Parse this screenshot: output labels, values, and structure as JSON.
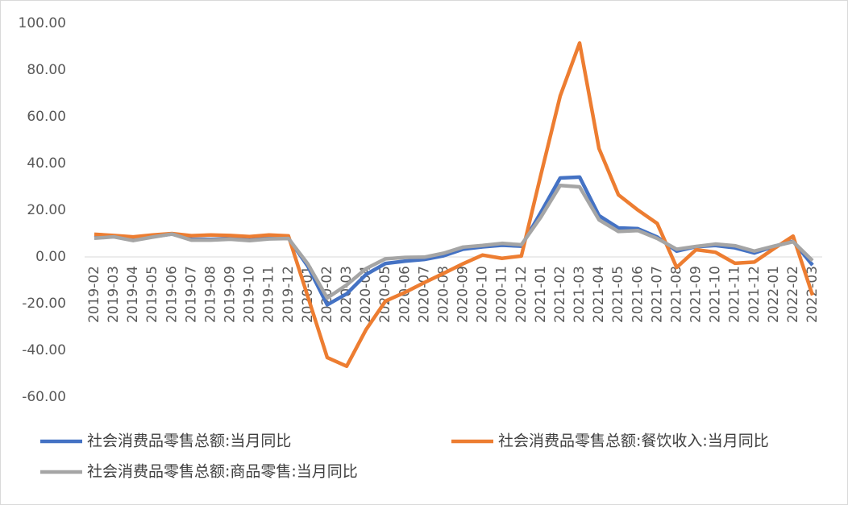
{
  "chart_data": {
    "type": "line",
    "categories": [
      "2019-02",
      "2019-03",
      "2019-04",
      "2019-05",
      "2019-06",
      "2019-07",
      "2019-08",
      "2019-09",
      "2019-10",
      "2019-11",
      "2019-12",
      "2020-01",
      "2020-02",
      "2020-03",
      "2020-04",
      "2020-05",
      "2020-06",
      "2020-07",
      "2020-08",
      "2020-09",
      "2020-10",
      "2020-11",
      "2020-12",
      "2021-01",
      "2021-02",
      "2021-03",
      "2021-04",
      "2021-05",
      "2021-06",
      "2021-07",
      "2021-08",
      "2021-09",
      "2021-10",
      "2021-11",
      "2021-12",
      "2022-01",
      "2022-02",
      "2022-03"
    ],
    "series": [
      {
        "name": "社会消费品零售总额:当月同比",
        "color": "#4472c4",
        "values": [
          8.2,
          8.7,
          7.2,
          8.6,
          9.8,
          7.6,
          7.5,
          7.8,
          7.2,
          8.0,
          8.0,
          -4,
          -20.5,
          -15.8,
          -7.5,
          -2.8,
          -1.8,
          -1.1,
          0.5,
          3.3,
          4.3,
          5.0,
          4.6,
          19,
          33.8,
          34.2,
          17.7,
          12.4,
          12.1,
          8.5,
          2.5,
          4.4,
          4.9,
          3.9,
          1.7,
          4.5,
          6.7,
          -3.5
        ]
      },
      {
        "name": "社会消费品零售总额:餐饮收入:当月同比",
        "color": "#ed7d31",
        "values": [
          9.7,
          9.2,
          8.6,
          9.4,
          10.0,
          9.1,
          9.4,
          9.2,
          8.7,
          9.4,
          9.0,
          -17,
          -43.1,
          -46.8,
          -31.1,
          -18.9,
          -15.2,
          -11.0,
          -7.0,
          -2.9,
          0.8,
          -0.6,
          0.4,
          35,
          68.9,
          91.6,
          46.4,
          26.6,
          20.1,
          14.3,
          -4.5,
          3.1,
          2.0,
          -2.7,
          -2.2,
          3.5,
          8.9,
          -16.4
        ]
      },
      {
        "name": "社会消费品零售总额:商品零售:当月同比",
        "color": "#a5a5a5",
        "values": [
          8.0,
          8.6,
          7.0,
          8.5,
          9.8,
          7.2,
          7.2,
          7.6,
          7.0,
          7.7,
          7.9,
          -3,
          -17.6,
          -12.0,
          -5.0,
          -0.8,
          -0.2,
          -0.1,
          1.6,
          4.2,
          4.9,
          5.8,
          5.2,
          17,
          30.6,
          30.0,
          15.9,
          10.9,
          11.3,
          7.9,
          3.3,
          4.5,
          5.5,
          4.8,
          2.5,
          4.6,
          6.5,
          -1.6
        ]
      }
    ],
    "ylim": [
      -60,
      100
    ],
    "yticks": [
      {
        "value": -60,
        "label": "-60.00"
      },
      {
        "value": -40,
        "label": "-40.00"
      },
      {
        "value": -20,
        "label": "-20.00"
      },
      {
        "value": 0,
        "label": "0.00"
      },
      {
        "value": 20,
        "label": "20.00"
      },
      {
        "value": 40,
        "label": "40.00"
      },
      {
        "value": 60,
        "label": "60.00"
      },
      {
        "value": 80,
        "label": "80.00"
      },
      {
        "value": 100,
        "label": "100.00"
      }
    ],
    "legend": "bottom"
  }
}
